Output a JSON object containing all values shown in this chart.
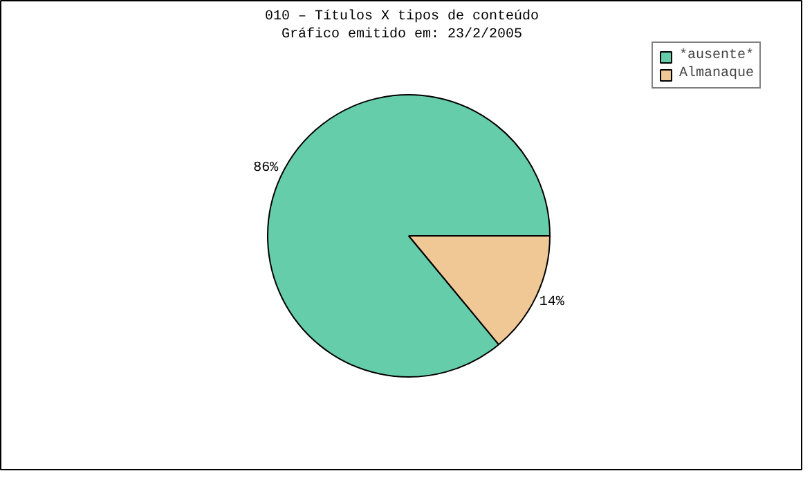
{
  "chart_data": {
    "type": "pie",
    "title": "010 – Títulos X tipos de conteúdo",
    "subtitle": "Gráfico emitido em: 23/2/2005",
    "categories": [
      "*ausente*",
      "Almanaque"
    ],
    "values": [
      86,
      14
    ],
    "colors": [
      "#66cdaa",
      "#f0c896"
    ],
    "value_labels": [
      "86%",
      "14%"
    ],
    "legend": "top right"
  }
}
